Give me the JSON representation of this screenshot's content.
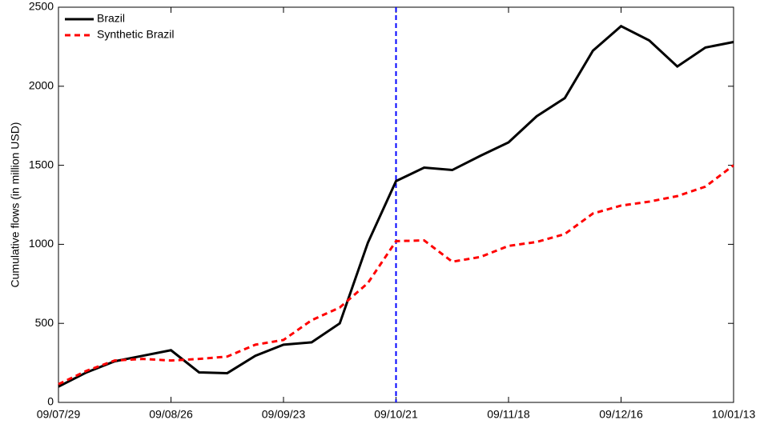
{
  "chart_data": {
    "type": "line",
    "ylabel": "Cumulative flows (in million USD)",
    "categories": [
      "09/07/29",
      null,
      null,
      null,
      "09/08/26",
      null,
      null,
      null,
      "09/09/23",
      null,
      null,
      null,
      "09/10/21",
      null,
      null,
      null,
      "09/11/18",
      null,
      null,
      null,
      "09/12/16",
      null,
      null,
      null,
      "10/01/13"
    ],
    "series": [
      {
        "name": "Brazil",
        "color": "#000000",
        "dash": "solid",
        "values": [
          100,
          190,
          260,
          295,
          330,
          190,
          185,
          295,
          365,
          380,
          500,
          1010,
          1400,
          1485,
          1470,
          1560,
          1645,
          1810,
          1925,
          2225,
          2380,
          2290,
          2125,
          2245,
          2280
        ]
      },
      {
        "name": "Synthetic Brazil",
        "color": "#ff0000",
        "dash": "dashed",
        "values": [
          115,
          200,
          265,
          275,
          265,
          275,
          290,
          365,
          395,
          520,
          600,
          755,
          1020,
          1025,
          890,
          920,
          990,
          1015,
          1065,
          1195,
          1245,
          1270,
          1305,
          1365,
          1500
        ]
      }
    ],
    "vline_index": 12,
    "vline_color": "#0000ff",
    "ylim": [
      0,
      2500
    ],
    "yticks": [
      0,
      500,
      1000,
      1500,
      2000,
      2500
    ],
    "grid": false,
    "legend": "upper-left"
  }
}
